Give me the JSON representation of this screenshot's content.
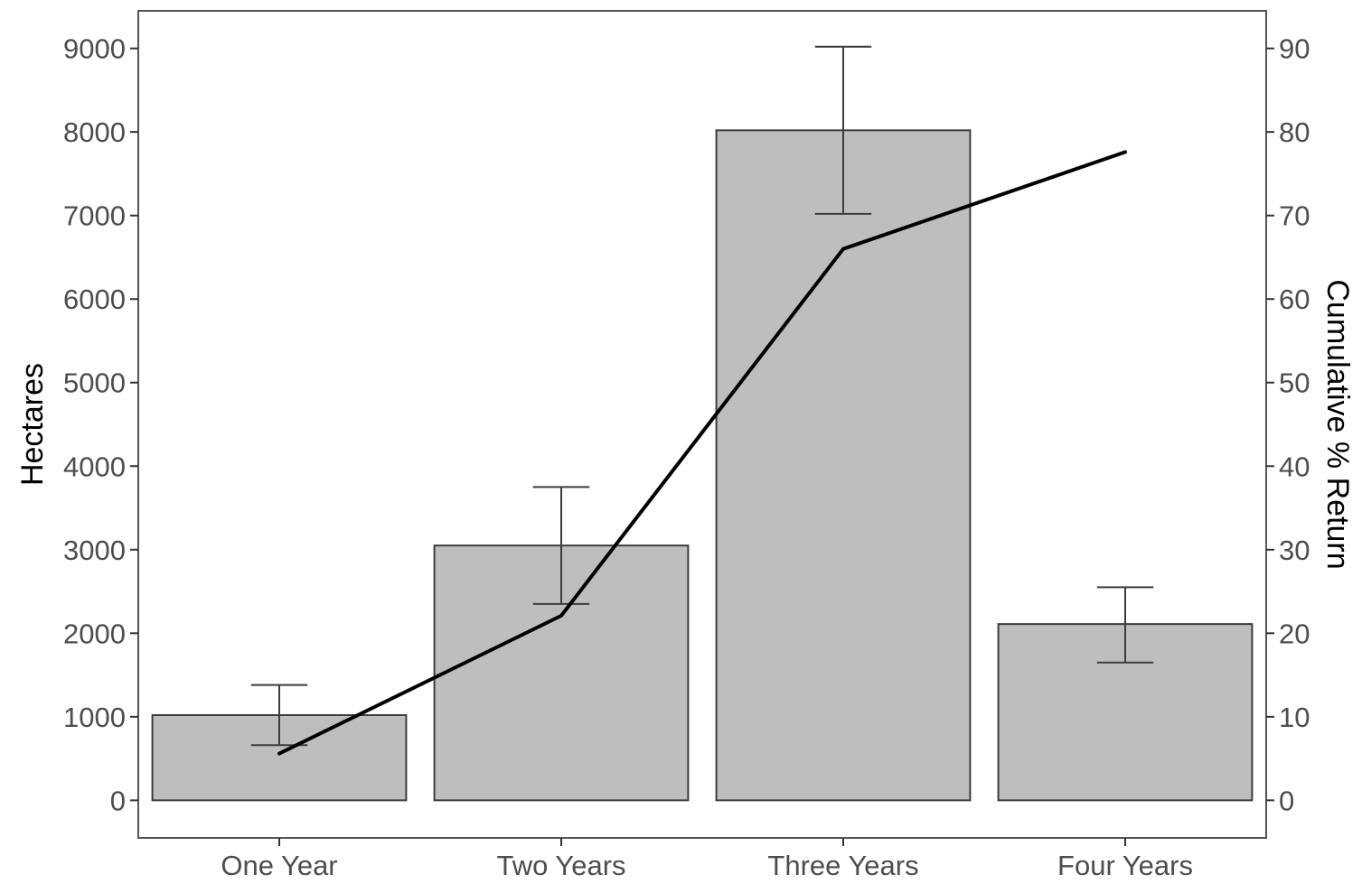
{
  "chart_data": {
    "type": "bar",
    "categories": [
      "One Year",
      "Two Years",
      "Three Years",
      "Four Years"
    ],
    "bars": {
      "values": [
        1020,
        3050,
        8020,
        2110
      ],
      "error_lower": [
        660,
        2350,
        7020,
        1650
      ],
      "error_upper": [
        1380,
        3750,
        9020,
        2550
      ],
      "fill": "#bebebe",
      "stroke": "#3c3c3c"
    },
    "line": {
      "values": [
        5.6,
        22.1,
        66.0,
        77.6
      ],
      "color": "#000000"
    },
    "ylabel": "Hectares",
    "ylabel_right": "Cumulative % Return",
    "ylim": [
      -450,
      9450
    ],
    "ylim_right": [
      -4.5,
      94.5
    ],
    "yticks": [
      0,
      1000,
      2000,
      3000,
      4000,
      5000,
      6000,
      7000,
      8000,
      9000
    ],
    "yticks_right": [
      0,
      10,
      20,
      30,
      40,
      50,
      60,
      70,
      80,
      90
    ],
    "grid": false,
    "legend": "none"
  }
}
